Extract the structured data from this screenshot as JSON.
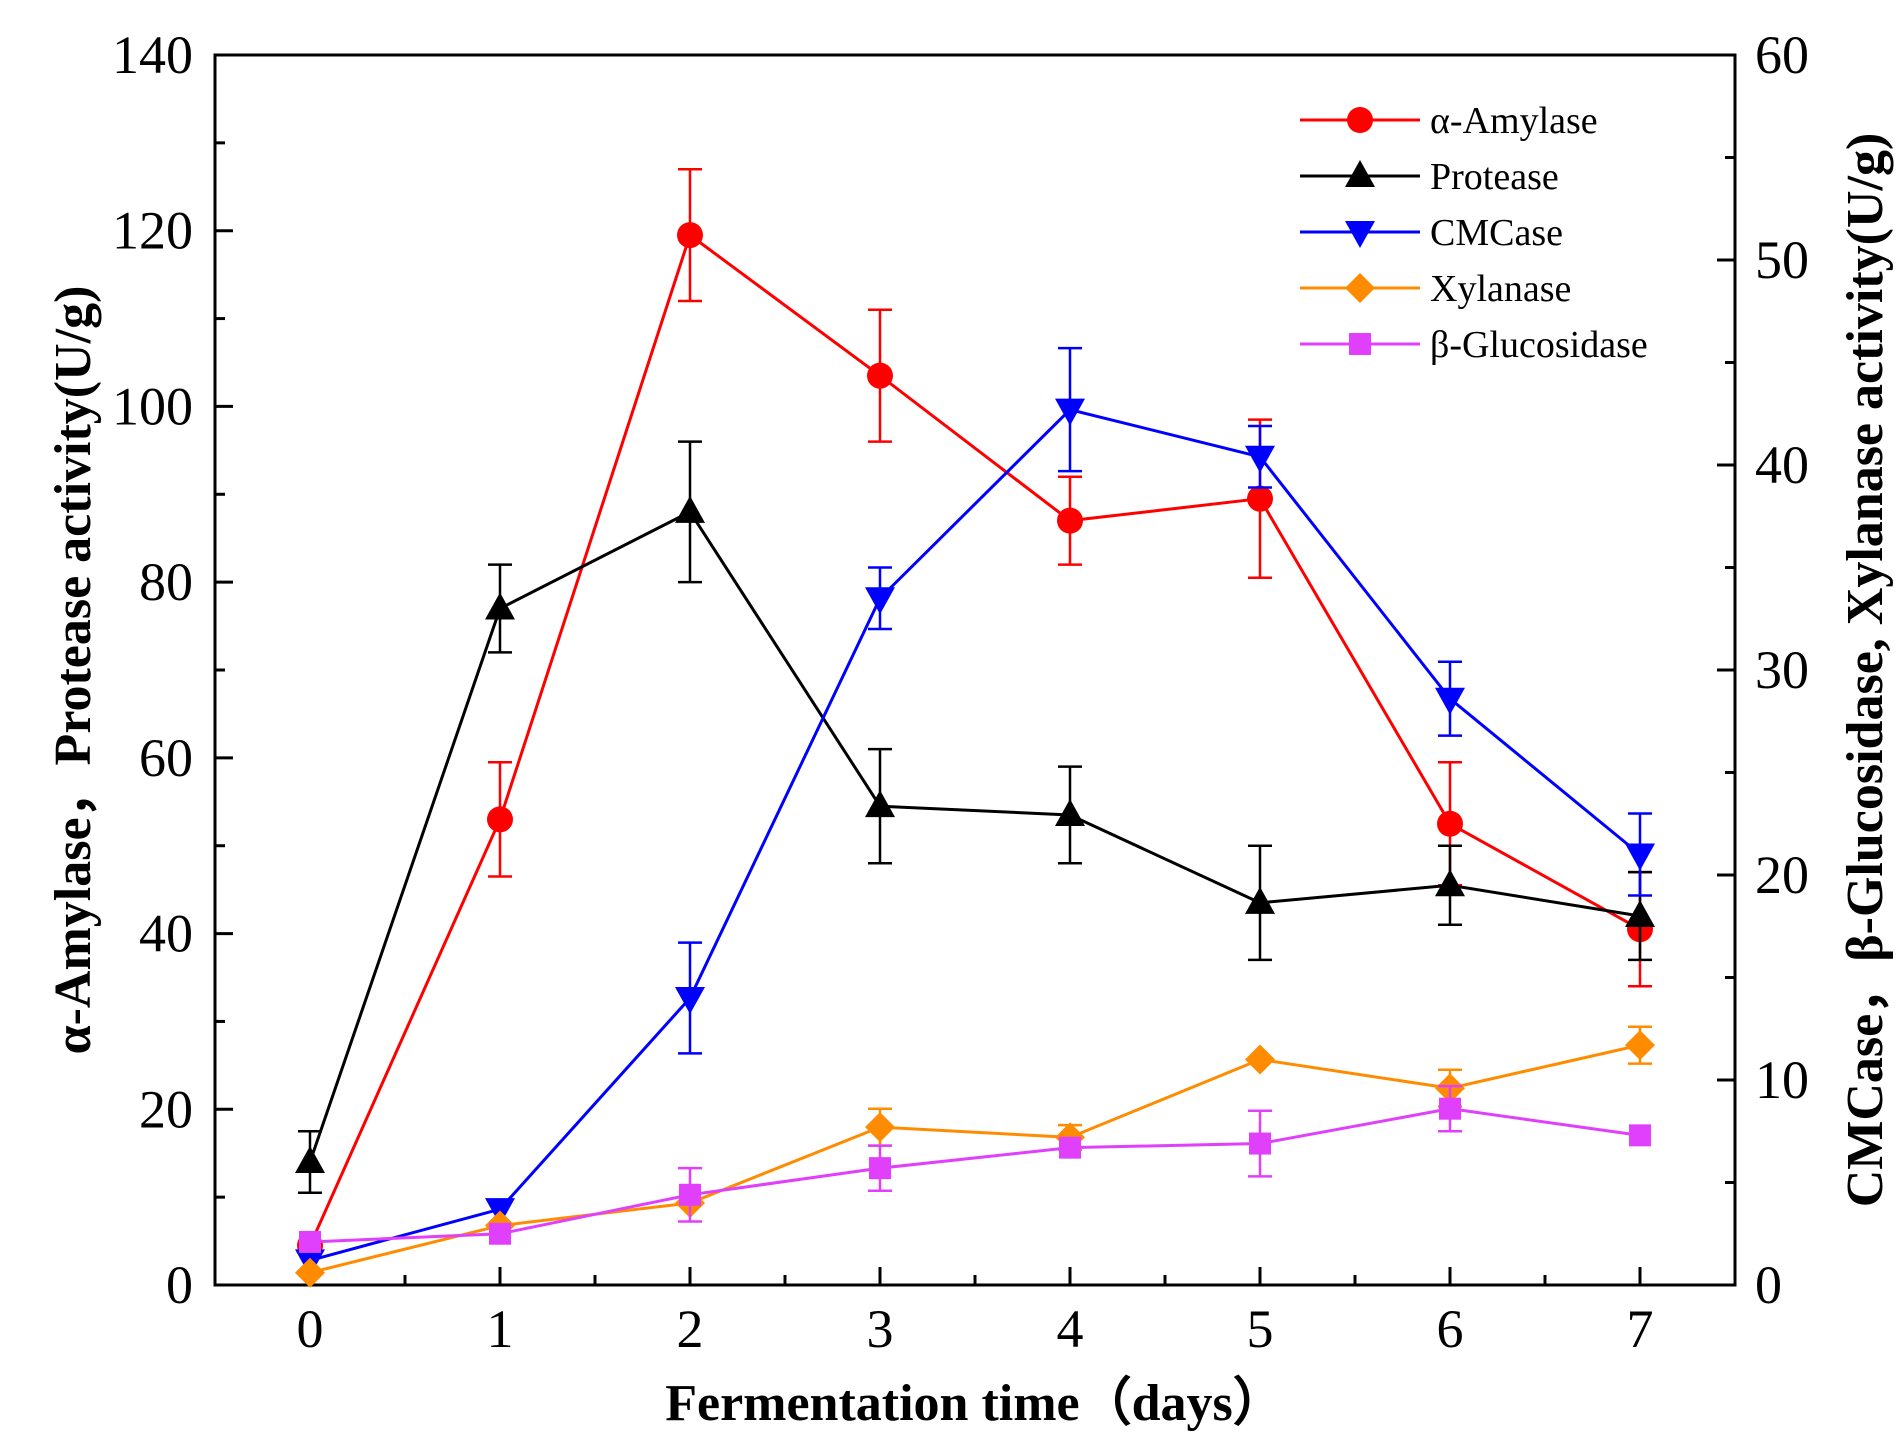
{
  "chart_data": {
    "type": "line",
    "xlabel": "Fermentation time（days）",
    "ylabel_left": "α-Amylase，Protease activity(U/g)",
    "ylabel_right": "CMCase，β-Glucosidase, Xylanase activity(U/g)",
    "x": [
      0,
      1,
      2,
      3,
      4,
      5,
      6,
      7
    ],
    "x_ticks": [
      "0",
      "1",
      "2",
      "3",
      "4",
      "5",
      "6",
      "7"
    ],
    "xlim": [
      -0.5,
      7.5
    ],
    "ylim_left": [
      0,
      140
    ],
    "y_ticks_left": [
      "0",
      "20",
      "40",
      "60",
      "80",
      "100",
      "120",
      "140"
    ],
    "ylim_right": [
      0,
      60
    ],
    "y_ticks_right": [
      "0",
      "10",
      "20",
      "30",
      "40",
      "50",
      "60"
    ],
    "grid": false,
    "legend_position": "top-right",
    "series": [
      {
        "name": "α-Amylase",
        "axis": "left",
        "marker": "circle",
        "color": "#ff0000",
        "values": [
          4.5,
          53,
          119.5,
          103.5,
          87,
          89.5,
          52.5,
          40.5
        ],
        "errors": [
          0,
          6.5,
          7.5,
          7.5,
          5,
          9,
          7,
          6.5
        ]
      },
      {
        "name": "Protease",
        "axis": "left",
        "marker": "triangle-up",
        "color": "#000000",
        "values": [
          14,
          77,
          88,
          54.5,
          53.5,
          43.5,
          45.5,
          42
        ],
        "errors": [
          3.5,
          5,
          8,
          6.5,
          5.5,
          6.5,
          4.5,
          5
        ]
      },
      {
        "name": "CMCase",
        "axis": "right",
        "marker": "triangle-down",
        "color": "#0000ff",
        "values": [
          1.2,
          3.7,
          14,
          33.5,
          42.7,
          40.4,
          28.6,
          21
        ],
        "errors": [
          0,
          0,
          2.7,
          1.5,
          3,
          1.5,
          1.8,
          2
        ]
      },
      {
        "name": "Xylanase",
        "axis": "right",
        "marker": "diamond",
        "color": "#ff8c00",
        "values": [
          0.6,
          2.9,
          4,
          7.7,
          7.2,
          11,
          9.6,
          11.7
        ],
        "errors": [
          0,
          0,
          0,
          0.9,
          0.6,
          0,
          0.9,
          0.9
        ]
      },
      {
        "name": "β-Glucosidase",
        "axis": "right",
        "marker": "square",
        "color": "#e040fb",
        "values": [
          2.1,
          2.5,
          4.4,
          5.7,
          6.7,
          6.9,
          8.6,
          7.3
        ],
        "errors": [
          0,
          0,
          1.3,
          1.1,
          0,
          1.6,
          1.1,
          0
        ]
      }
    ]
  }
}
